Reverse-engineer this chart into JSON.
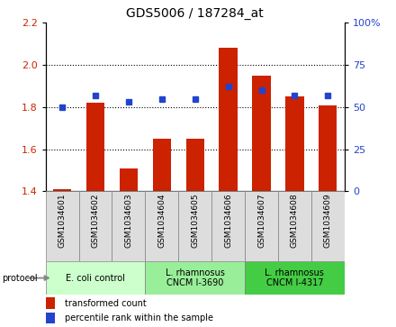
{
  "title": "GDS5006 / 187284_at",
  "samples": [
    "GSM1034601",
    "GSM1034602",
    "GSM1034603",
    "GSM1034604",
    "GSM1034605",
    "GSM1034606",
    "GSM1034607",
    "GSM1034608",
    "GSM1034609"
  ],
  "transformed_count": [
    1.41,
    1.82,
    1.51,
    1.65,
    1.65,
    2.08,
    1.95,
    1.85,
    1.81
  ],
  "percentile_rank": [
    50,
    57,
    53,
    55,
    55,
    62,
    60,
    57,
    57
  ],
  "bar_color": "#cc2200",
  "dot_color": "#2244cc",
  "ylim_left": [
    1.4,
    2.2
  ],
  "ylim_right": [
    0,
    100
  ],
  "yticks_left": [
    1.4,
    1.6,
    1.8,
    2.0,
    2.2
  ],
  "yticks_right": [
    0,
    25,
    50,
    75,
    100
  ],
  "ytick_labels_right": [
    "0",
    "25",
    "50",
    "75",
    "100%"
  ],
  "protocol_colors": [
    "#ccffcc",
    "#99ee99",
    "#44cc44"
  ],
  "protocol_labels": [
    "E. coli control",
    "L. rhamnosus\nCNCM I-3690",
    "L. rhamnosus\nCNCM I-4317"
  ],
  "protocol_ranges": [
    [
      0,
      3
    ],
    [
      3,
      6
    ],
    [
      6,
      9
    ]
  ],
  "legend_labels": [
    "transformed count",
    "percentile rank within the sample"
  ],
  "legend_colors": [
    "#cc2200",
    "#2244cc"
  ],
  "protocol_label": "protocol",
  "bar_bottom": 1.4,
  "bar_width": 0.55,
  "sample_box_color": "#dddddd",
  "grid_color": "black",
  "grid_lines": [
    1.6,
    1.8,
    2.0
  ]
}
